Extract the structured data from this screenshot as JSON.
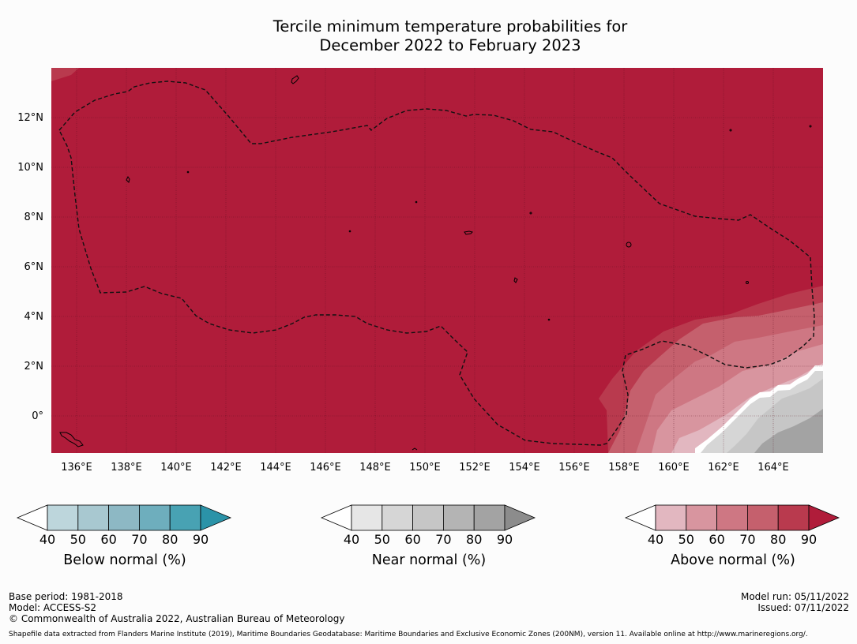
{
  "title": {
    "line1": "Tercile minimum temperature probabilities for",
    "line2": "December 2022 to February 2023"
  },
  "map": {
    "dominant_category": "Above normal",
    "dominant_color": "#b01c3a",
    "grid_lines": true,
    "boundary_style": "dashed",
    "lat_labels": [
      "12°N",
      "10°N",
      "8°N",
      "6°N",
      "4°N",
      "2°N",
      "0°"
    ],
    "lon_labels": [
      "136°E",
      "138°E",
      "140°E",
      "142°E",
      "144°E",
      "146°E",
      "148°E",
      "150°E",
      "152°E",
      "154°E",
      "156°E",
      "158°E",
      "160°E",
      "162°E",
      "164°E"
    ]
  },
  "colorbars": [
    {
      "name": "below",
      "label": "Below normal (%)",
      "ticks": [
        "40",
        "50",
        "60",
        "70",
        "80",
        "90"
      ],
      "colors": [
        "#ffffff",
        "#bdd6dc",
        "#a8c8d0",
        "#8db8c4",
        "#6eaebd",
        "#48a2b3",
        "#2b93a8"
      ]
    },
    {
      "name": "near",
      "label": "Near normal (%)",
      "ticks": [
        "40",
        "50",
        "60",
        "70",
        "80",
        "90"
      ],
      "colors": [
        "#ffffff",
        "#e6e6e6",
        "#d6d6d6",
        "#c6c6c6",
        "#b4b4b4",
        "#a3a3a3",
        "#8c8c8c"
      ]
    },
    {
      "name": "above",
      "label": "Above normal (%)",
      "ticks": [
        "40",
        "50",
        "60",
        "70",
        "80",
        "90"
      ],
      "colors": [
        "#ffffff",
        "#e2b7c0",
        "#d8959f",
        "#ce7783",
        "#c5606d",
        "#b93a4e",
        "#b01c3a"
      ]
    }
  ],
  "footer": {
    "base_period": "Base period: 1981-2018",
    "model": "Model: ACCESS-S2",
    "copyright": "© Commonwealth of Australia 2022, Australian Bureau of Meteorology",
    "model_run": "Model run: 05/11/2022",
    "issued": "Issued: 07/11/2022",
    "shapefile": "Shapefile data extracted from Flanders Marine Institute (2019), Maritime Boundaries Geodatabase: Maritime Boundaries and Exclusive Economic Zones (200NM), version 11. Available online at http://www.marineregions.org/."
  }
}
